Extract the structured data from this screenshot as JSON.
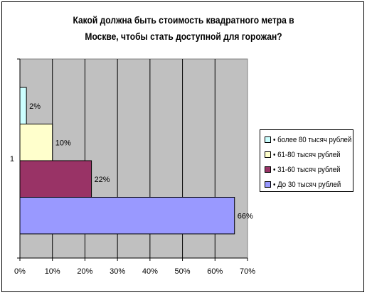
{
  "chart_data": {
    "type": "bar",
    "orientation": "horizontal",
    "title": "Какой должна быть стоимость квадратного метра в Москве, чтобы стать доступной для горожан?",
    "title_lines": [
      "Какой должна быть стоимость квадратного метра в",
      "Москве, чтобы стать доступной для горожан?"
    ],
    "categories": [
      "1"
    ],
    "xlim": [
      0,
      70
    ],
    "x_ticks": [
      "0%",
      "10%",
      "20%",
      "30%",
      "40%",
      "50%",
      "60%",
      "70%"
    ],
    "grid": true,
    "legend_position": "right",
    "series": [
      {
        "name": "• До 30 тысяч рублей",
        "values": [
          66
        ],
        "label": "66%",
        "color": "#9999ff"
      },
      {
        "name": "• 31-60 тысяч рублей",
        "values": [
          22
        ],
        "label": "22%",
        "color": "#993366"
      },
      {
        "name": "• 61-80 тысяч рублей",
        "values": [
          10
        ],
        "label": "10%",
        "color": "#ffffcc"
      },
      {
        "name": "• более 80 тысяч рублей",
        "values": [
          2
        ],
        "label": "2%",
        "color": "#ccffff"
      }
    ],
    "plot_background": "#c0c0c0"
  }
}
